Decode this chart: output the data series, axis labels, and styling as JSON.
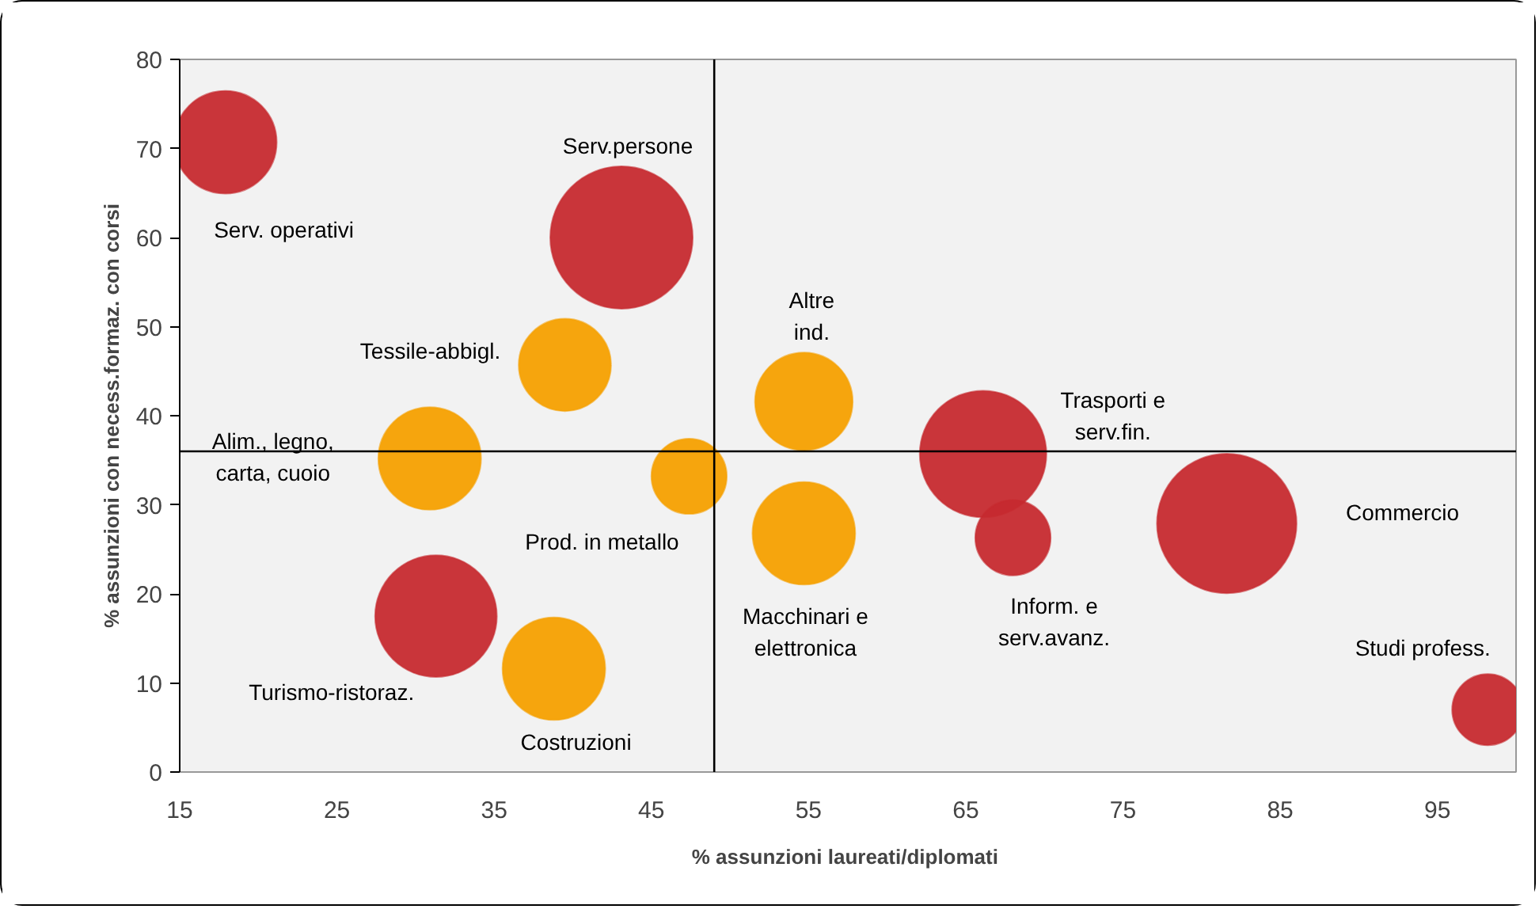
{
  "chart_data": {
    "type": "bubble",
    "xlabel": "% assunzioni  laureati/diplomati",
    "ylabel": "% assunzioni con necess.formaz. con corsi",
    "xlim": [
      15,
      100
    ],
    "xticks": [
      15,
      25,
      35,
      45,
      55,
      65,
      75,
      85,
      95
    ],
    "ylim": [
      0,
      80
    ],
    "yticks": [
      0,
      10,
      20,
      30,
      40,
      50,
      60,
      70,
      80
    ],
    "grid": false,
    "marker": "circle",
    "series": [
      {
        "color": "#c62a2f",
        "x": [
          17.9,
          43.1,
          31.3,
          66.1,
          68.0,
          81.6,
          98.2
        ],
        "values": [
          70.7,
          60.0,
          17.5,
          35.7,
          26.3,
          27.9,
          7.0
        ],
        "sizes": [
          0.52,
          1,
          0.73,
          0.79,
          0.28,
          0.96,
          0.25
        ]
      },
      {
        "color": "#f5a000",
        "x": [
          39.5,
          30.9,
          47.4,
          38.8,
          54.7,
          54.7
        ],
        "values": [
          45.7,
          35.2,
          33.2,
          11.6,
          41.6,
          26.8
        ],
        "sizes": [
          0.42,
          0.52,
          0.28,
          0.52,
          0.47,
          0.52
        ]
      }
    ],
    "ref_lines": [
      {
        "axis": "x",
        "value": 49,
        "color": "#000000"
      },
      {
        "axis": "y",
        "value": 36,
        "color": "#000000"
      }
    ],
    "annotations": [
      "Serv. operativi",
      "Serv.persone",
      "Tessile-abbigl.",
      "Alim., legno,\ncarta, cuoio",
      "Prod. in metallo",
      "Turismo-ristoraz.",
      "Costruzioni",
      "Altre\nind.",
      "Macchinari e\nelettronica",
      "Trasporti e\nserv.fin.",
      "Inform. e\nserv.avanz.",
      "Commercio",
      "Studi profess."
    ]
  }
}
